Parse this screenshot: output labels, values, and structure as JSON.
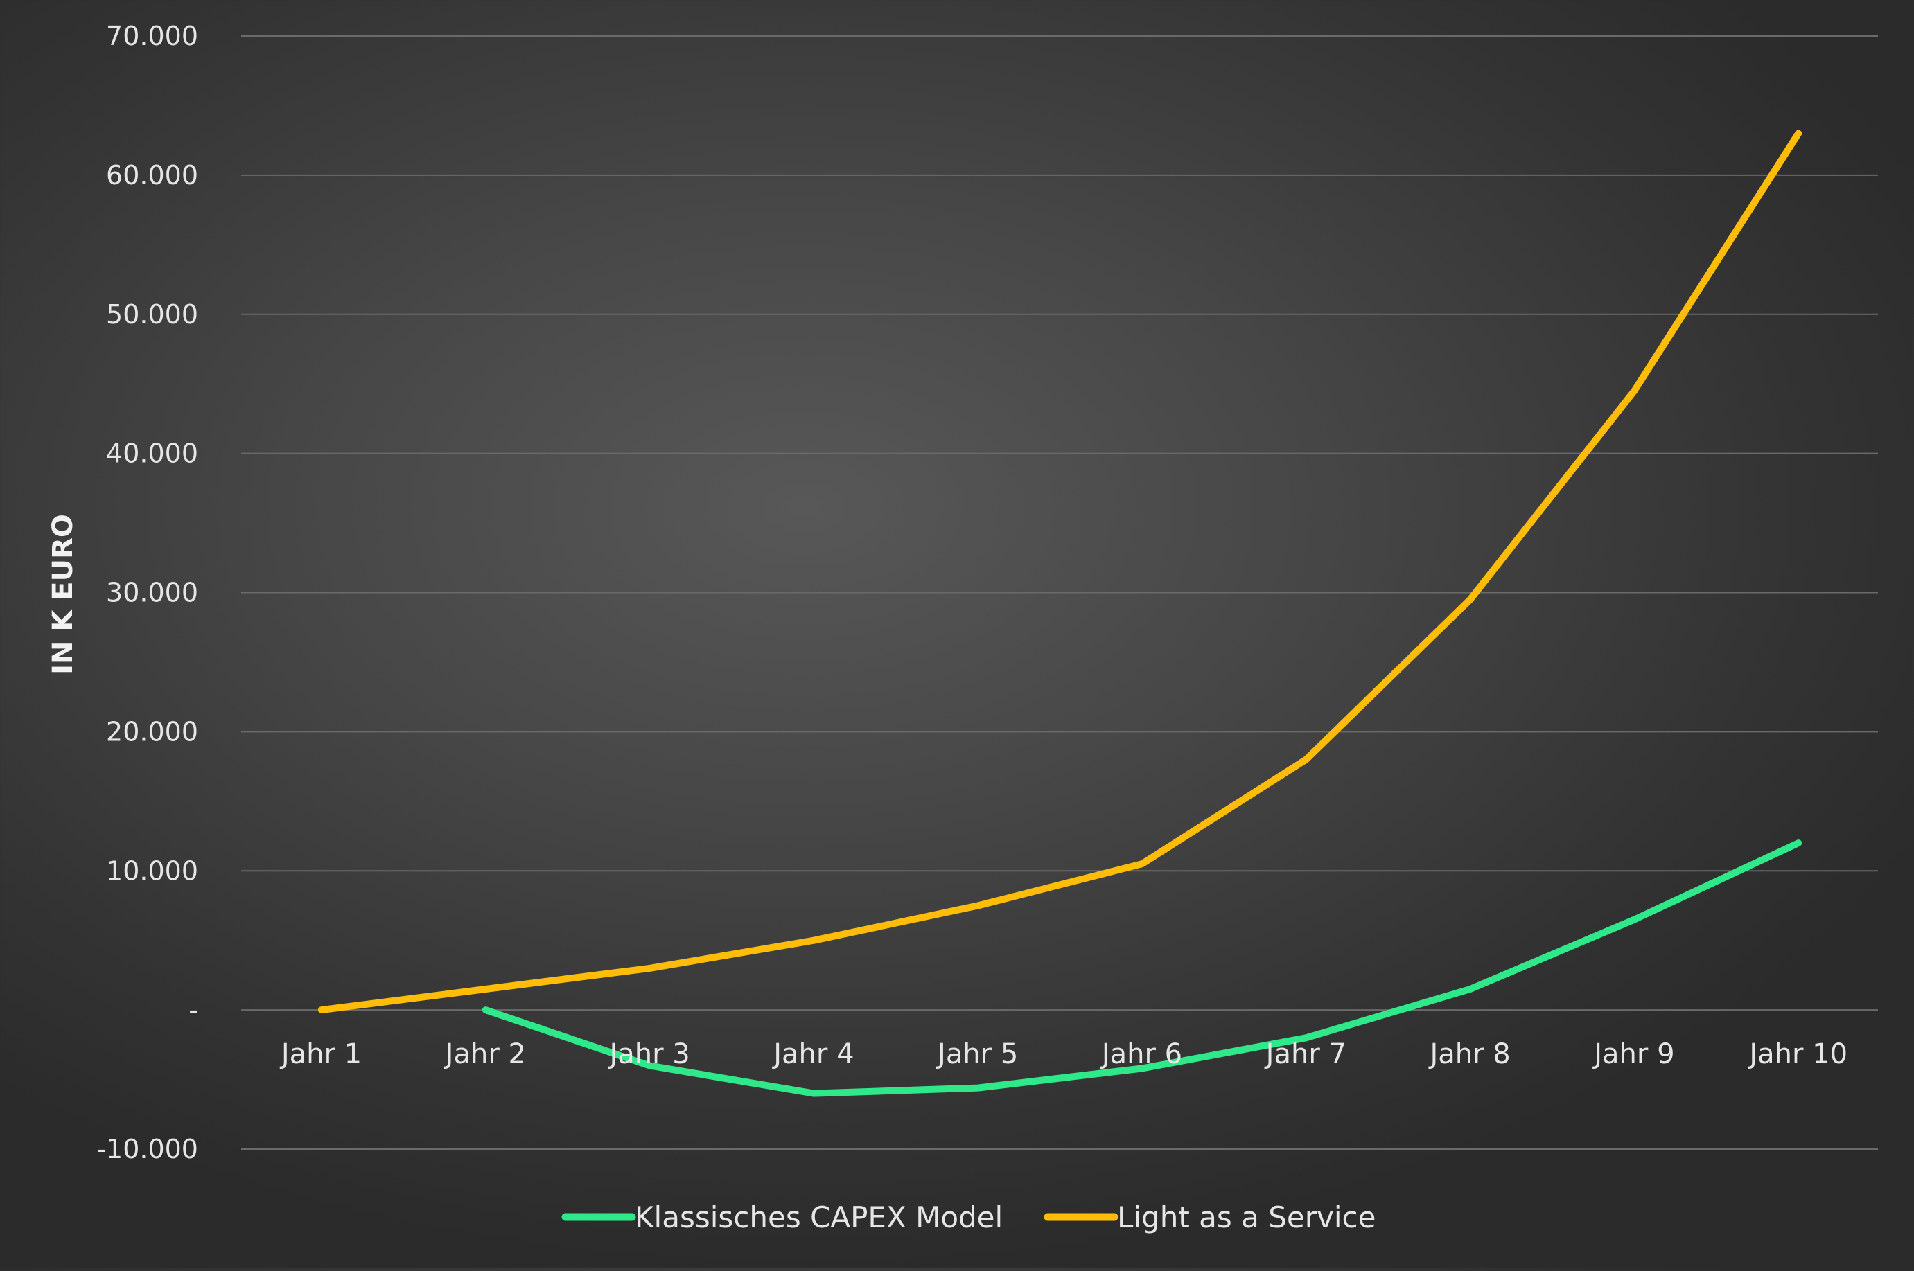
{
  "chart_data": {
    "type": "line",
    "title": "",
    "xlabel": "",
    "ylabel": "IN K EURO",
    "ylim": [
      -10000,
      70000
    ],
    "ytick_step": 10000,
    "y_ticks": [
      {
        "value": 70000,
        "label": "70.000"
      },
      {
        "value": 60000,
        "label": "60.000"
      },
      {
        "value": 50000,
        "label": "50.000"
      },
      {
        "value": 40000,
        "label": "40.000"
      },
      {
        "value": 30000,
        "label": "30.000"
      },
      {
        "value": 20000,
        "label": "20.000"
      },
      {
        "value": 10000,
        "label": "10.000"
      },
      {
        "value": 0,
        "label": "-"
      },
      {
        "value": -10000,
        "label": "-10.000"
      }
    ],
    "categories": [
      "Jahr 1",
      "Jahr 2",
      "Jahr 3",
      "Jahr 4",
      "Jahr 5",
      "Jahr 6",
      "Jahr 7",
      "Jahr 8",
      "Jahr 9",
      "Jahr 10"
    ],
    "grid": true,
    "legend_position": "bottom",
    "series": [
      {
        "name": "Klassisches CAPEX Model",
        "color": "#2ee88a",
        "values": [
          null,
          0,
          -4000,
          -6000,
          -5600,
          -4200,
          -2000,
          1500,
          6500,
          12000
        ]
      },
      {
        "name": "Light as a Service",
        "color": "#ffbd0a",
        "values": [
          0,
          1500,
          3000,
          5000,
          7500,
          10500,
          18000,
          29500,
          44500,
          63000
        ]
      }
    ]
  }
}
